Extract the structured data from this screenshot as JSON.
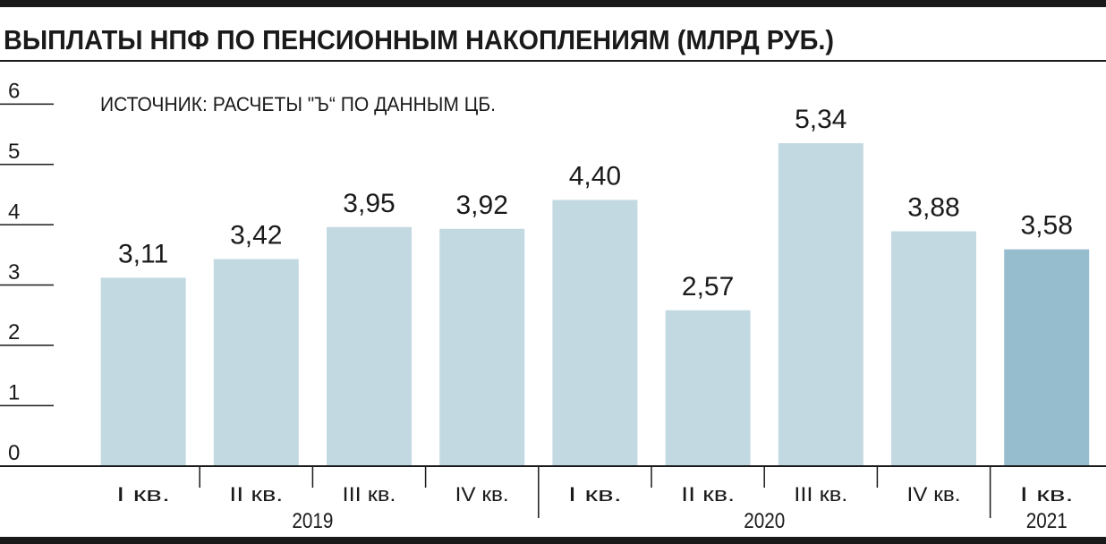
{
  "chart_data": {
    "type": "bar",
    "title": "ВЫПЛАТЫ НПФ ПО ПЕНСИОННЫМ НАКОПЛЕНИЯМ (МЛРД РУБ.)",
    "source": "ИСТОЧНИК: РАСЧЕТЫ \"Ъ“ ПО ДАННЫМ ЦБ.",
    "categories": [
      "I кв.",
      "II кв.",
      "III кв.",
      "IV кв.",
      "I кв.",
      "II кв.",
      "III кв.",
      "IV кв.",
      "I кв."
    ],
    "years": [
      {
        "label": "2019",
        "quarters": 4
      },
      {
        "label": "2020",
        "quarters": 4
      },
      {
        "label": "2021",
        "quarters": 1
      }
    ],
    "values": [
      3.11,
      3.42,
      3.95,
      3.92,
      4.4,
      2.57,
      5.34,
      3.88,
      3.58
    ],
    "value_labels": [
      "3,11",
      "3,42",
      "3,95",
      "3,92",
      "4,40",
      "2,57",
      "5,34",
      "3,88",
      "3,58"
    ],
    "ylim": [
      0,
      6
    ],
    "yticks": [
      0,
      1,
      2,
      3,
      4,
      5,
      6
    ],
    "grid": false,
    "colors": {
      "bar": "#c3d9e1",
      "highlight_bar": "#95bdcd",
      "highlight_index": 8,
      "rule": "#1a1a1a"
    }
  }
}
